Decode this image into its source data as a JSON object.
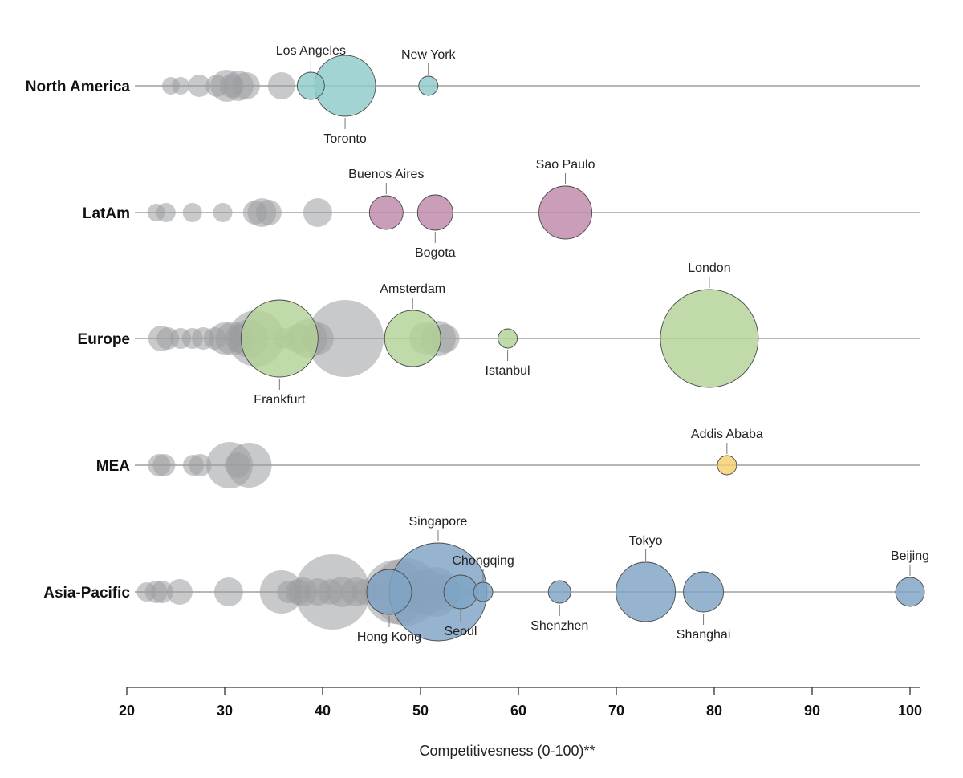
{
  "chart_data": {
    "type": "scatter",
    "subtype": "bubble-strip",
    "xlabel": "Competitivesness (0-100)**",
    "xlim": [
      20,
      101
    ],
    "xticks": [
      20,
      30,
      40,
      50,
      60,
      70,
      80,
      90,
      100
    ],
    "gray_color": "#9a9ca1",
    "regions": [
      {
        "name": "North America",
        "color": "#8fcbcb",
        "gray_points": [
          {
            "x": 24.5,
            "r": 11
          },
          {
            "x": 25.5,
            "r": 11
          },
          {
            "x": 27.4,
            "r": 14
          },
          {
            "x": 29.2,
            "r": 14
          },
          {
            "x": 30.2,
            "r": 20
          },
          {
            "x": 30.7,
            "r": 15
          },
          {
            "x": 31.4,
            "r": 19
          },
          {
            "x": 32.2,
            "r": 17
          },
          {
            "x": 35.8,
            "r": 17
          }
        ],
        "cities": [
          {
            "name": "Los Angeles",
            "x": 38.8,
            "r": 17,
            "label_pos": "above"
          },
          {
            "name": "Toronto",
            "x": 42.3,
            "r": 38,
            "label_pos": "below"
          },
          {
            "name": "New York",
            "x": 50.8,
            "r": 12,
            "label_pos": "above"
          }
        ]
      },
      {
        "name": "LatAm",
        "color": "#be87aa",
        "gray_points": [
          {
            "x": 23.0,
            "r": 11
          },
          {
            "x": 24.0,
            "r": 12
          },
          {
            "x": 26.7,
            "r": 12
          },
          {
            "x": 29.8,
            "r": 12
          },
          {
            "x": 33.1,
            "r": 15
          },
          {
            "x": 33.8,
            "r": 18
          },
          {
            "x": 34.5,
            "r": 16
          },
          {
            "x": 39.5,
            "r": 18
          }
        ],
        "cities": [
          {
            "name": "Buenos Aires",
            "x": 46.5,
            "r": 21,
            "label_pos": "above"
          },
          {
            "name": "Bogota",
            "x": 51.5,
            "r": 22,
            "label_pos": "below"
          },
          {
            "name": "Sao Paulo",
            "x": 64.8,
            "r": 33,
            "label_pos": "above"
          }
        ]
      },
      {
        "name": "Europe",
        "color": "#b2d296",
        "gray_points": [
          {
            "x": 23.5,
            "r": 16
          },
          {
            "x": 24.2,
            "r": 14
          },
          {
            "x": 25.5,
            "r": 13
          },
          {
            "x": 26.7,
            "r": 13
          },
          {
            "x": 27.8,
            "r": 14
          },
          {
            "x": 29.0,
            "r": 14
          },
          {
            "x": 30.0,
            "r": 20
          },
          {
            "x": 30.8,
            "r": 21
          },
          {
            "x": 31.5,
            "r": 18
          },
          {
            "x": 32.5,
            "r": 24
          },
          {
            "x": 33.2,
            "r": 35
          },
          {
            "x": 36.0,
            "r": 13
          },
          {
            "x": 37.5,
            "r": 18
          },
          {
            "x": 38.5,
            "r": 24
          },
          {
            "x": 39.5,
            "r": 20
          },
          {
            "x": 42.3,
            "r": 48
          },
          {
            "x": 50.5,
            "r": 20
          },
          {
            "x": 51.8,
            "r": 22
          },
          {
            "x": 52.5,
            "r": 18
          }
        ],
        "cities": [
          {
            "name": "Frankfurt",
            "x": 35.6,
            "r": 48,
            "label_pos": "below"
          },
          {
            "name": "Amsterdam",
            "x": 49.2,
            "r": 35,
            "label_pos": "above"
          },
          {
            "name": "Istanbul",
            "x": 58.9,
            "r": 12,
            "label_pos": "below"
          },
          {
            "name": "London",
            "x": 79.5,
            "r": 61,
            "label_pos": "above"
          }
        ]
      },
      {
        "name": "MEA",
        "color": "#f6cf6e",
        "gray_points": [
          {
            "x": 23.3,
            "r": 14
          },
          {
            "x": 23.8,
            "r": 14
          },
          {
            "x": 26.8,
            "r": 13
          },
          {
            "x": 27.5,
            "r": 14
          },
          {
            "x": 30.5,
            "r": 29
          },
          {
            "x": 31.3,
            "r": 16
          },
          {
            "x": 32.5,
            "r": 28
          }
        ],
        "cities": [
          {
            "name": "Addis Ababa",
            "x": 81.3,
            "r": 12,
            "label_pos": "above"
          }
        ]
      },
      {
        "name": "Asia-Pacific",
        "color": "#7fa3c5",
        "gray_points": [
          {
            "x": 22.0,
            "r": 12
          },
          {
            "x": 23.0,
            "r": 14
          },
          {
            "x": 23.6,
            "r": 14
          },
          {
            "x": 25.4,
            "r": 16
          },
          {
            "x": 30.4,
            "r": 18
          },
          {
            "x": 35.8,
            "r": 27
          },
          {
            "x": 36.5,
            "r": 14
          },
          {
            "x": 37.5,
            "r": 16
          },
          {
            "x": 38.0,
            "r": 18
          },
          {
            "x": 39.5,
            "r": 17
          },
          {
            "x": 40.8,
            "r": 16
          },
          {
            "x": 41.0,
            "r": 47
          },
          {
            "x": 42.0,
            "r": 19
          },
          {
            "x": 43.4,
            "r": 18
          },
          {
            "x": 44.3,
            "r": 16
          },
          {
            "x": 47.5,
            "r": 40
          },
          {
            "x": 48.5,
            "r": 42
          },
          {
            "x": 50.5,
            "r": 28
          },
          {
            "x": 51.5,
            "r": 31
          },
          {
            "x": 52.3,
            "r": 22
          }
        ],
        "cities": [
          {
            "name": "Hong Kong",
            "x": 46.8,
            "r": 28,
            "label_pos": "below"
          },
          {
            "name": "Singapore",
            "x": 51.8,
            "r": 61,
            "label_pos": "above"
          },
          {
            "name": "Seoul",
            "x": 54.1,
            "r": 21,
            "label_pos": "below"
          },
          {
            "name": "Chongqing",
            "x": 56.4,
            "r": 12,
            "label_pos": "above"
          },
          {
            "name": "Shenzhen",
            "x": 64.2,
            "r": 14,
            "label_pos": "below"
          },
          {
            "name": "Tokyo",
            "x": 73.0,
            "r": 37,
            "label_pos": "above"
          },
          {
            "name": "Shanghai",
            "x": 78.9,
            "r": 25,
            "label_pos": "below"
          },
          {
            "name": "Beijing",
            "x": 100.0,
            "r": 18,
            "label_pos": "above"
          }
        ]
      }
    ]
  }
}
